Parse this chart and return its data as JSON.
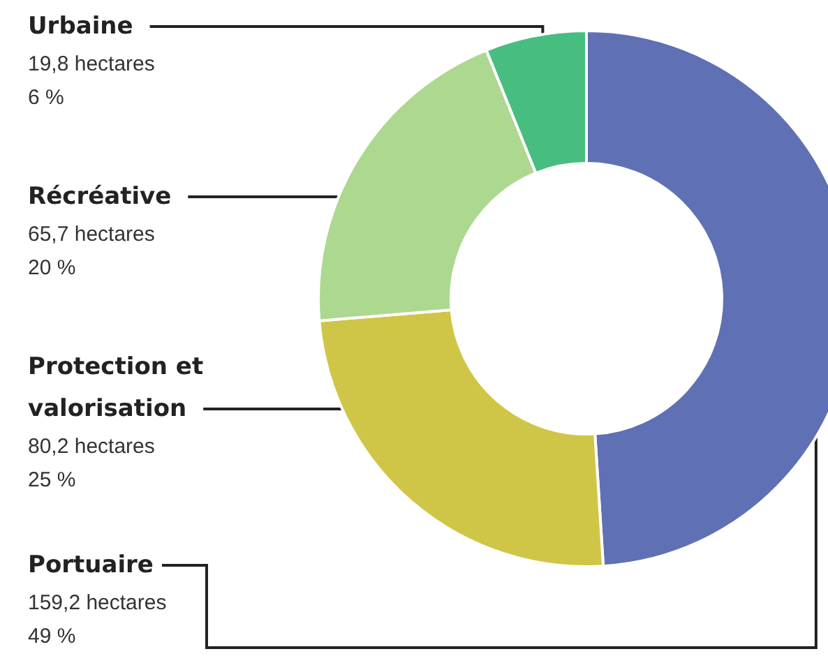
{
  "chart_data": {
    "type": "donut",
    "categories": [
      "Portuaire",
      "Protection et valorisation",
      "Récréative",
      "Urbaine"
    ],
    "values": [
      159.2,
      80.2,
      65.7,
      19.8
    ],
    "colors": [
      "#6070b4",
      "#cfc647",
      "#add88f",
      "#48bd80"
    ],
    "value_labels": [
      "159,2 hectares\n49 %",
      "80,2 hectares\n25 %",
      "65,7 hectares\n20 %",
      "19,8 hectares\n6 %"
    ],
    "legend": false
  }
}
